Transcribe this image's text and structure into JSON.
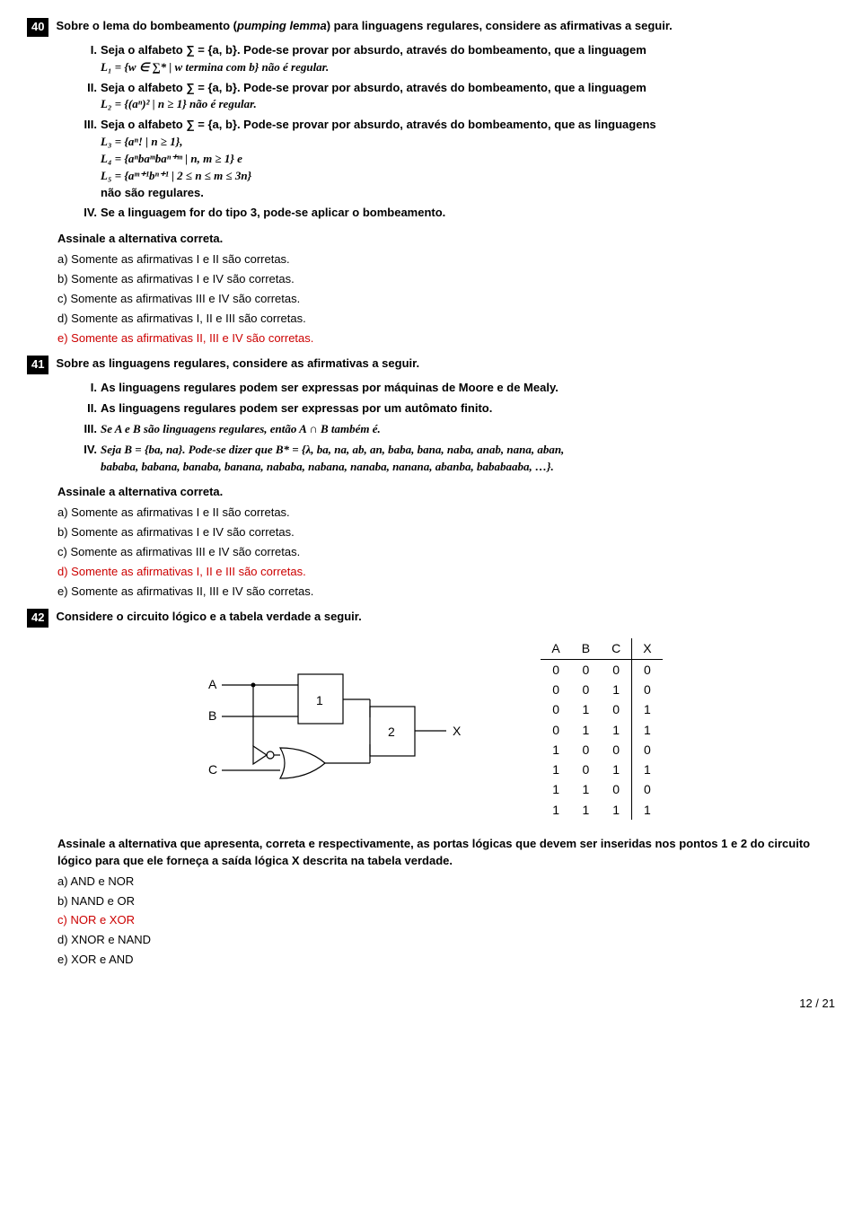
{
  "q40": {
    "num": "40",
    "prompt_a": "Sobre o lema do bombeamento (",
    "prompt_i": "pumping lemma",
    "prompt_b": ") para linguagens regulares, considere as afirmativas a seguir.",
    "I_a": "Seja o alfabeto ∑ = {a, b}. Pode-se provar por absurdo, através do bombeamento, que a linguagem",
    "I_b": "L₁ = {w ∈ ∑* | w termina com b} não é regular.",
    "II_a": "Seja o alfabeto ∑ = {a, b}. Pode-se provar por absurdo, através do bombeamento, que a linguagem",
    "II_b": "L₂ = {(aⁿ)² | n ≥ 1} não é regular.",
    "III_a": "Seja o alfabeto ∑ = {a, b}. Pode-se provar por absurdo, através do bombeamento, que as linguagens",
    "III_l3": "L₃ = {aⁿ! | n ≥ 1},",
    "III_l4": "L₄ = {aⁿbaᵐbaⁿ⁺ᵐ | n, m ≥ 1} e",
    "III_l5": "L₅ = {aᵐ⁺¹bⁿ⁺¹ | 2 ≤ n ≤ m ≤ 3n}",
    "III_c": "não são regulares.",
    "IV": "Se a linguagem for do tipo 3, pode-se aplicar o bombeamento.",
    "assinale": "Assinale a alternativa correta.",
    "opts": {
      "a": "a) Somente as afirmativas I e II são corretas.",
      "b": "b) Somente as afirmativas I e IV são corretas.",
      "c": "c) Somente as afirmativas III e IV são corretas.",
      "d": "d) Somente as afirmativas I, II e III são corretas.",
      "e": "e) Somente as afirmativas II, III e IV são corretas."
    }
  },
  "q41": {
    "num": "41",
    "prompt": "Sobre as linguagens regulares, considere as afirmativas a seguir.",
    "I": "As linguagens regulares podem ser expressas por máquinas de Moore e de Mealy.",
    "II": "As linguagens regulares podem ser expressas por um autômato finito.",
    "III": "Se A e B são linguagens regulares, então A ∩ B também é.",
    "IV_a": "Seja B = {ba, na}. Pode-se dizer que B* = {λ, ba, na, ab, an, baba, bana, naba, anab, nana, aban,",
    "IV_b": "bababa, babana, banaba, banana, nababa, nabana, nanaba, nanana, abanba, bababaaba, …}.",
    "assinale": "Assinale a alternativa correta.",
    "opts": {
      "a": "a) Somente as afirmativas I e II são corretas.",
      "b": "b) Somente as afirmativas I e IV são corretas.",
      "c": "c) Somente as afirmativas III e IV são corretas.",
      "d": "d) Somente as afirmativas I, II e III são corretas.",
      "e": "e) Somente as afirmativas II, III e IV são corretas."
    }
  },
  "q42": {
    "num": "42",
    "prompt": "Considere o circuito lógico e a tabela verdade a seguir.",
    "circuit": {
      "inputs": [
        "A",
        "B",
        "C"
      ],
      "gate1_label": "1",
      "gate2_label": "2",
      "output_label": "X"
    },
    "truth": {
      "headers": [
        "A",
        "B",
        "C",
        "X"
      ],
      "rows": [
        [
          "0",
          "0",
          "0",
          "0"
        ],
        [
          "0",
          "0",
          "1",
          "0"
        ],
        [
          "0",
          "1",
          "0",
          "1"
        ],
        [
          "0",
          "1",
          "1",
          "1"
        ],
        [
          "1",
          "0",
          "0",
          "0"
        ],
        [
          "1",
          "0",
          "1",
          "1"
        ],
        [
          "1",
          "1",
          "0",
          "0"
        ],
        [
          "1",
          "1",
          "1",
          "1"
        ]
      ]
    },
    "instr": "Assinale a alternativa que apresenta, correta e respectivamente, as portas lógicas que devem ser inseridas nos pontos 1 e 2 do circuito lógico para que ele forneça a saída lógica X descrita na tabela verdade.",
    "opts": {
      "a": "a) AND e NOR",
      "b": "b) NAND e OR",
      "c": "c) NOR e XOR",
      "d": "d) XNOR e NAND",
      "e": "e) XOR e AND"
    }
  },
  "footer": "12 / 21"
}
